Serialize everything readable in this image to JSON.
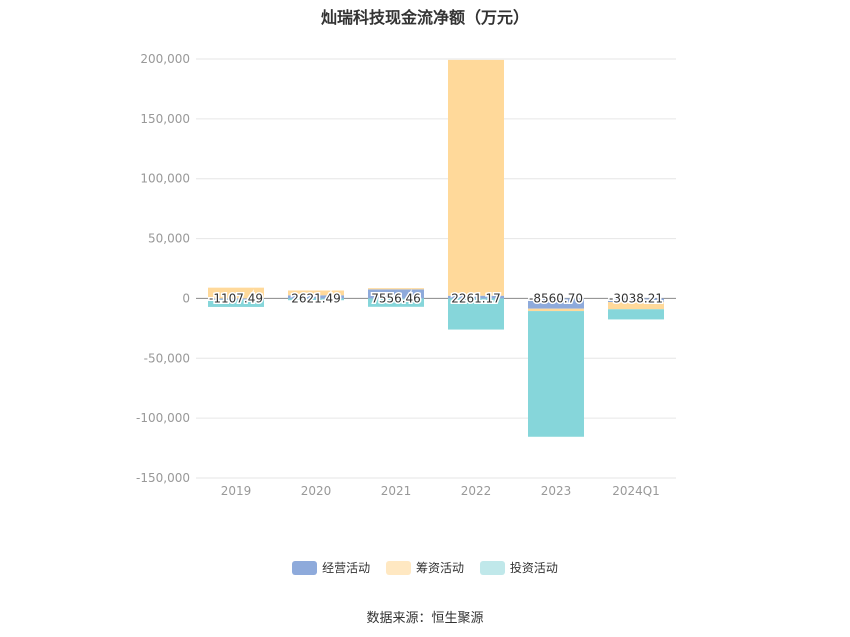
{
  "chart_data": {
    "type": "bar",
    "stacked": true,
    "title": "灿瑞科技现金流净额（万元）",
    "categories": [
      "2019",
      "2020",
      "2021",
      "2022",
      "2023",
      "2024Q1"
    ],
    "ylim": [
      -150000,
      200000
    ],
    "yticks": [
      200000,
      150000,
      100000,
      50000,
      0,
      -50000,
      -100000,
      -150000
    ],
    "ytick_labels": [
      "200,000",
      "150,000",
      "100,000",
      "50,000",
      "0",
      "-50,000",
      "-100,000",
      "-150,000"
    ],
    "grid": true,
    "legend_position": "bottom",
    "series": [
      {
        "name": "经营活动",
        "color": "#8eaadb",
        "values": [
          -1107.49,
          2621.49,
          7556.46,
          2261.17,
          -8560.7,
          -3038.21
        ]
      },
      {
        "name": "筹资活动",
        "color": "#ffd99a",
        "values": [
          9000,
          4000,
          1000,
          197000,
          -2000,
          -6000
        ]
      },
      {
        "name": "投资活动",
        "color": "#86d6da",
        "values": [
          -6000,
          -1500,
          -7000,
          -26000,
          -105000,
          -8500
        ]
      }
    ],
    "data_labels": [
      "-1107.49",
      "2621.49",
      "7556.46",
      "2261.17",
      "-8560.70",
      "-3038.21"
    ]
  },
  "legend_colors": [
    "#8eaadb",
    "#ffe8c2",
    "#c0e8ea"
  ],
  "source": "数据来源：恒生聚源"
}
